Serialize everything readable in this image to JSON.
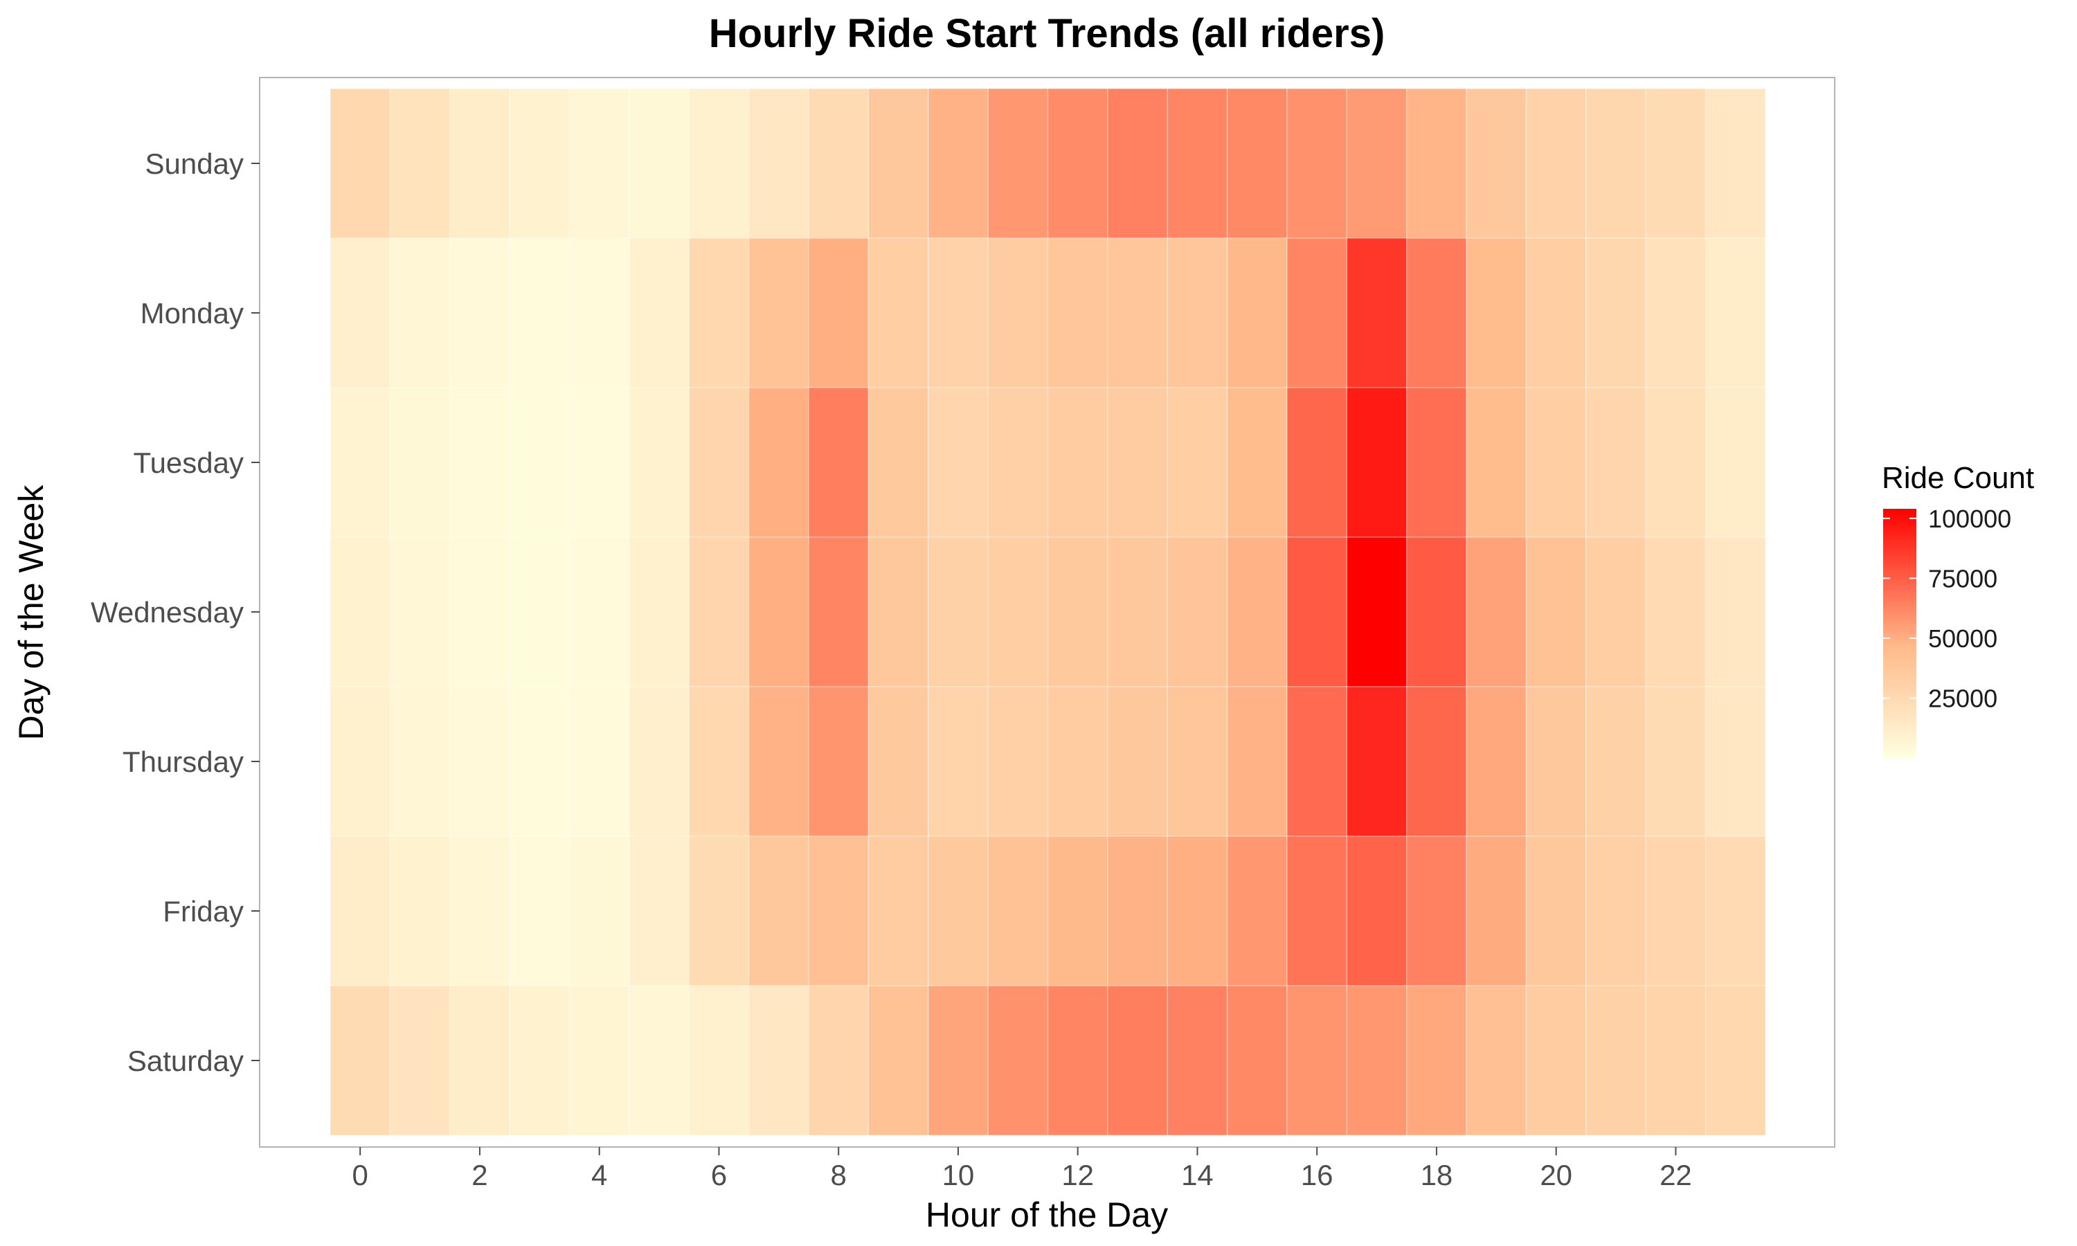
{
  "chart_data": {
    "type": "heatmap",
    "title": "Hourly Ride Start Trends (all riders)",
    "xlabel": "Hour of the Day",
    "ylabel": "Day of the Week",
    "x": [
      0,
      1,
      2,
      3,
      4,
      5,
      6,
      7,
      8,
      9,
      10,
      11,
      12,
      13,
      14,
      15,
      16,
      17,
      18,
      19,
      20,
      21,
      22,
      23
    ],
    "x_tick_labels": [
      "0",
      "2",
      "4",
      "6",
      "8",
      "10",
      "12",
      "14",
      "16",
      "18",
      "20",
      "22"
    ],
    "x_tick_values": [
      0,
      2,
      4,
      6,
      8,
      10,
      12,
      14,
      16,
      18,
      20,
      22
    ],
    "y": [
      "Sunday",
      "Monday",
      "Tuesday",
      "Wednesday",
      "Thursday",
      "Friday",
      "Saturday"
    ],
    "values": [
      [
        26000,
        19000,
        13000,
        9000,
        6000,
        5000,
        10000,
        16000,
        25000,
        37000,
        49000,
        57000,
        61000,
        64000,
        63000,
        62000,
        59000,
        56000,
        48000,
        37000,
        30000,
        27000,
        24000,
        16000
      ],
      [
        11000,
        6000,
        4000,
        2500,
        3500,
        10000,
        26000,
        40000,
        50000,
        33000,
        30000,
        34000,
        38000,
        38000,
        38000,
        47000,
        63000,
        87000,
        66000,
        45000,
        33000,
        27000,
        20000,
        12000
      ],
      [
        8000,
        5000,
        3000,
        2000,
        2500,
        9000,
        28000,
        50000,
        65000,
        36000,
        28000,
        32000,
        34000,
        34000,
        33000,
        45000,
        72000,
        96000,
        70000,
        45000,
        33000,
        28000,
        21000,
        13000
      ],
      [
        9000,
        5500,
        3500,
        2000,
        3000,
        10000,
        28000,
        50000,
        63000,
        37000,
        31000,
        33000,
        36000,
        37000,
        39000,
        49000,
        76000,
        104000,
        76000,
        54000,
        41000,
        33000,
        25000,
        16000
      ],
      [
        10000,
        6000,
        4000,
        2500,
        3000,
        11000,
        26000,
        49000,
        58000,
        36000,
        29000,
        32000,
        34000,
        37000,
        38000,
        49000,
        71000,
        92000,
        72000,
        52000,
        37000,
        31000,
        24000,
        16000
      ],
      [
        13000,
        9000,
        6000,
        3500,
        5000,
        11000,
        24000,
        37000,
        42000,
        34000,
        36000,
        41000,
        46000,
        49000,
        50000,
        57000,
        68000,
        73000,
        64000,
        51000,
        37000,
        32000,
        28000,
        25000
      ],
      [
        24000,
        18000,
        13000,
        9000,
        7000,
        6000,
        10000,
        16000,
        28000,
        41000,
        53000,
        59000,
        63000,
        65000,
        64000,
        62000,
        58000,
        57000,
        52000,
        42000,
        35000,
        31000,
        29000,
        26000
      ]
    ],
    "value_range": [
      0,
      104000
    ],
    "legend_title": "Ride Count",
    "legend_ticks": [
      "25000",
      "50000",
      "75000",
      "100000"
    ],
    "legend_tick_values": [
      25000,
      50000,
      75000,
      100000
    ],
    "legend_position": "right",
    "colors": {
      "low": "#ffffe0",
      "mid": "#ffb98a",
      "high": "#ff0000"
    },
    "grid": false
  }
}
